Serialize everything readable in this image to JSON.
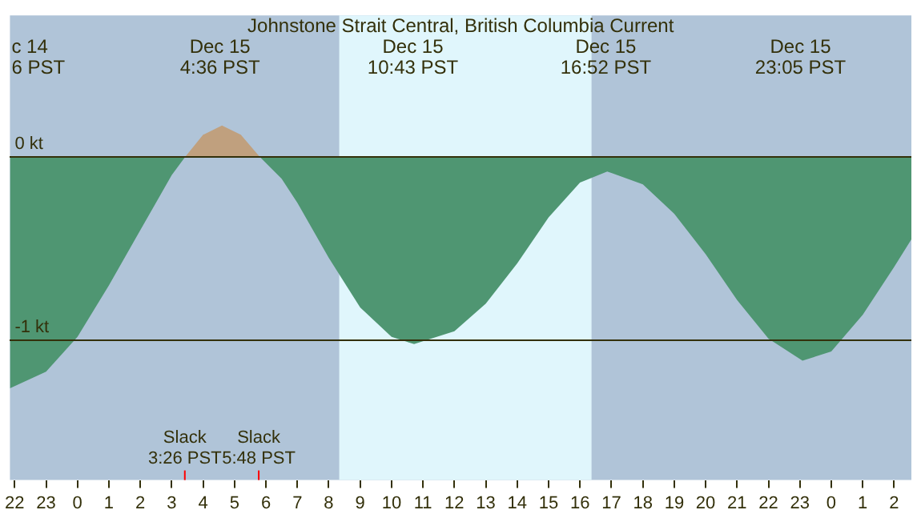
{
  "chart_data": {
    "type": "area",
    "title": "Johnstone Strait Central, British Columbia Current",
    "x": [
      "--12-14T21:51",
      "--12-14T23:00",
      "--12-15T00:00",
      "--12-15T01:00",
      "--12-15T02:00",
      "--12-15T03:00",
      "--12-15T03:26",
      "--12-15T04:00",
      "--12-15T04:36",
      "--12-15T05:12",
      "--12-15T05:48",
      "--12-15T06:30",
      "--12-15T07:00",
      "--12-15T08:00",
      "--12-15T09:00",
      "--12-15T10:00",
      "--12-15T10:43",
      "--12-15T12:00",
      "--12-15T13:00",
      "--12-15T14:00",
      "--12-15T15:00",
      "--12-15T16:00",
      "--12-15T16:52",
      "--12-15T18:00",
      "--12-15T19:00",
      "--12-15T20:00",
      "--12-15T21:00",
      "--12-15T22:00",
      "--12-15T23:05",
      "--12-16T00:00",
      "--12-16T01:00",
      "--12-16T02:00",
      "--12-16T02:33"
    ],
    "series": [
      {
        "color": "#4f9672",
        "values": [
          -1.26,
          -1.17,
          -0.98,
          -0.7,
          -0.4,
          -0.1,
          0,
          0.12,
          0.17,
          0.12,
          0,
          -0.12,
          -0.25,
          -0.55,
          -0.82,
          -0.98,
          -1.02,
          -0.95,
          -0.8,
          -0.58,
          -0.33,
          -0.14,
          -0.08,
          -0.15,
          -0.31,
          -0.53,
          -0.78,
          -0.99,
          -1.11,
          -1.06,
          -0.86,
          -0.6,
          -0.45
        ]
      }
    ],
    "xlim": [
      "--12-14T21:51",
      "--12-16T02:33"
    ],
    "xticks": [
      {
        "value": "--12-14T22:00",
        "label": "22"
      },
      {
        "value": "--12-14T23:00",
        "label": "23"
      },
      {
        "value": "--12-15T00:00",
        "label": "0"
      },
      {
        "value": "--12-15T01:00",
        "label": "1"
      },
      {
        "value": "--12-15T02:00",
        "label": "2"
      },
      {
        "value": "--12-15T03:00",
        "label": "3"
      },
      {
        "value": "--12-15T04:00",
        "label": "4"
      },
      {
        "value": "--12-15T05:00",
        "label": "5"
      },
      {
        "value": "--12-15T06:00",
        "label": "6"
      },
      {
        "value": "--12-15T07:00",
        "label": "7"
      },
      {
        "value": "--12-15T08:00",
        "label": "8"
      },
      {
        "value": "--12-15T09:00",
        "label": "9"
      },
      {
        "value": "--12-15T10:00",
        "label": "10"
      },
      {
        "value": "--12-15T11:00",
        "label": "11"
      },
      {
        "value": "--12-15T12:00",
        "label": "12"
      },
      {
        "value": "--12-15T13:00",
        "label": "13"
      },
      {
        "value": "--12-15T14:00",
        "label": "14"
      },
      {
        "value": "--12-15T15:00",
        "label": "15"
      },
      {
        "value": "--12-15T16:00",
        "label": "16"
      },
      {
        "value": "--12-15T17:00",
        "label": "17"
      },
      {
        "value": "--12-15T18:00",
        "label": "18"
      },
      {
        "value": "--12-15T19:00",
        "label": "19"
      },
      {
        "value": "--12-15T20:00",
        "label": "20"
      },
      {
        "value": "--12-15T21:00",
        "label": "21"
      },
      {
        "value": "--12-15T22:00",
        "label": "22"
      },
      {
        "value": "--12-15T23:00",
        "label": "23"
      },
      {
        "value": "--12-16T00:00",
        "label": "0"
      },
      {
        "value": "--12-16T01:00",
        "label": "1"
      },
      {
        "value": "--12-16T02:00",
        "label": "2"
      }
    ],
    "ylim": [
      -1.76,
      0.77
    ],
    "yticks": [
      {
        "value": 0,
        "label": "0 kt"
      },
      {
        "value": -1,
        "label": "-1 kt"
      }
    ],
    "grid": "y",
    "bands": [
      {
        "axis": "x",
        "from": "--12-15T08:20",
        "to": "--12-15T16:22",
        "color": "#e0f6fc"
      }
    ],
    "annotations": [
      "c 14\n6 PST",
      "Dec 15\n4:36 PST",
      "Dec 15\n10:43 PST",
      "Dec 15\n16:52 PST",
      "Dec 15\n23:05 PST",
      "Slack\n3:26 PST",
      "Slack\n5:48 PST"
    ]
  }
}
